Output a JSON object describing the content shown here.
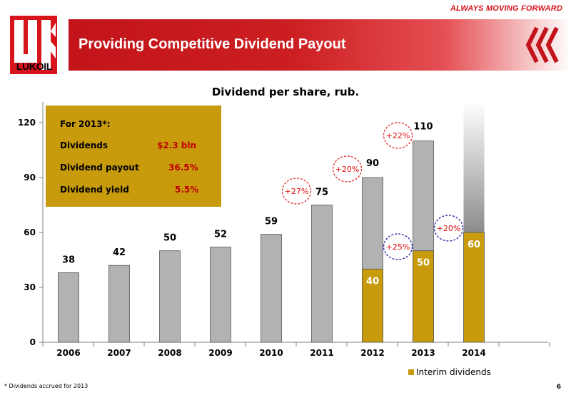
{
  "header": {
    "tagline": "ALWAYS MOVING FORWARD",
    "title": "Providing Competitive Dividend Payout",
    "logo_text": "LUKOIL",
    "brand_color": "#d7131b"
  },
  "info_box": {
    "heading": "For 2013*:",
    "rows": [
      {
        "label": "Dividends",
        "value": "$2.3 bln"
      },
      {
        "label": "Dividend  payout",
        "value": "36.5%"
      },
      {
        "label": "Dividend  yield",
        "value": "5.5%"
      }
    ],
    "background": "#c89b0c"
  },
  "chart_data": {
    "type": "bar",
    "title": "Dividend per share, rub.",
    "categories": [
      "2006",
      "2007",
      "2008",
      "2009",
      "2010",
      "2011",
      "2012",
      "2013",
      "2014"
    ],
    "totals": [
      38,
      42,
      50,
      52,
      59,
      75,
      90,
      110,
      null
    ],
    "series": [
      {
        "name": "Interim dividends",
        "values": [
          null,
          null,
          null,
          null,
          null,
          null,
          40,
          50,
          60
        ],
        "color": "#c89b0c"
      },
      {
        "values": [
          38,
          42,
          50,
          52,
          59,
          75,
          90,
          110,
          null
        ],
        "color": "#b2b2b2"
      }
    ],
    "ylim": [
      0,
      120
    ],
    "yticks": [
      0,
      30,
      60,
      90,
      120
    ],
    "grid": false,
    "legend_position": "bottom-right",
    "annotations": {
      "growth_total": [
        {
          "text": "+27%",
          "from": "2010",
          "to": "2011"
        },
        {
          "text": "+20%",
          "from": "2011",
          "to": "2012"
        },
        {
          "text": "+22%",
          "from": "2012",
          "to": "2013"
        }
      ],
      "growth_interim": [
        {
          "text": "+25%",
          "from": "2012",
          "to": "2013"
        },
        {
          "text": "+20%",
          "from": "2013",
          "to": "2014"
        }
      ],
      "total_circle_color": "#e03030",
      "interim_circle_color": "#2a2aa8"
    }
  },
  "footnote": "* Dividends accrued for 2013",
  "page_number": "6"
}
